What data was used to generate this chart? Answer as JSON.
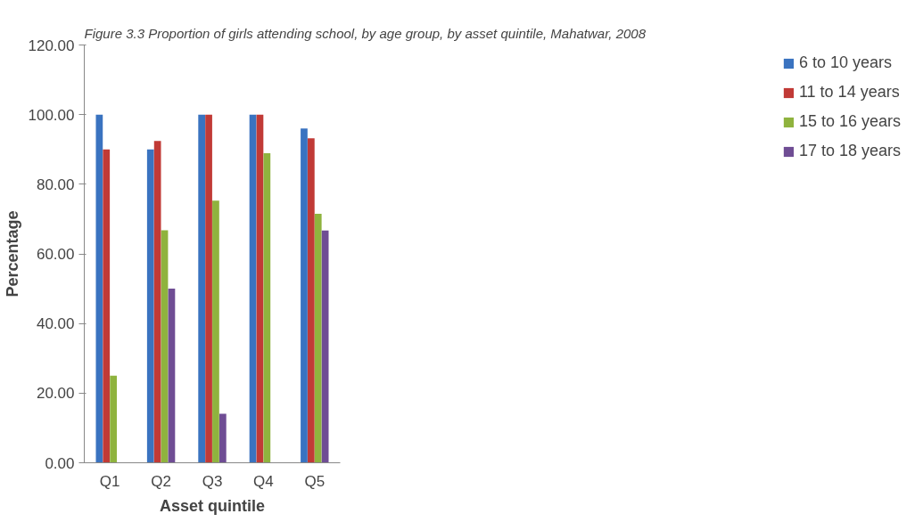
{
  "chart_data": {
    "type": "bar",
    "title": "Figure 3.3 Proportion of girls attending school, by age group, by asset quintile, Mahatwar, 2008",
    "xlabel": "Asset quintile",
    "ylabel": "Percentage",
    "categories": [
      "Q1",
      "Q2",
      "Q3",
      "Q4",
      "Q5"
    ],
    "series": [
      {
        "name": "6 to 10 years",
        "color": "#3a73c0",
        "values": [
          100,
          90,
          100,
          100,
          96
        ]
      },
      {
        "name": "11 to 14 years",
        "color": "#c13a36",
        "values": [
          90,
          92.4,
          100,
          100,
          93.2
        ]
      },
      {
        "name": "15 to 16 years",
        "color": "#8fb33e",
        "values": [
          25,
          66.8,
          75.3,
          88.9,
          71.5
        ]
      },
      {
        "name": "17 to 18 years",
        "color": "#6f4d94",
        "values": [
          null,
          50,
          14.1,
          null,
          66.7
        ]
      }
    ],
    "ylim": [
      0,
      120
    ],
    "yticks": [
      {
        "value": 0,
        "label": "0.00"
      },
      {
        "value": 20,
        "label": "20.00"
      },
      {
        "value": 40,
        "label": "40.00"
      },
      {
        "value": 60,
        "label": "60.00"
      },
      {
        "value": 80,
        "label": "80.00"
      },
      {
        "value": 100,
        "label": "100.00"
      },
      {
        "value": 120,
        "label": "120.00"
      }
    ],
    "grid": false,
    "legend": "right"
  }
}
